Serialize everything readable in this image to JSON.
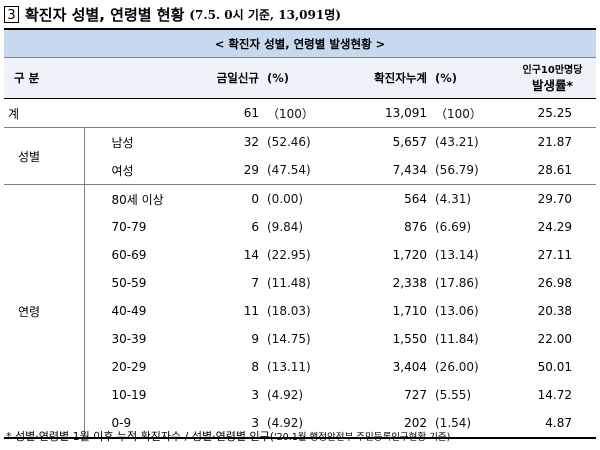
{
  "title": {
    "number": "3",
    "main": "확진자 성별, 연령별 현황",
    "sub": "(7.5. 0시 기준, 13,091명)"
  },
  "table": {
    "banner": "< 확진자 성별, 연령별 발생현황 >",
    "headers": {
      "category": "구 분",
      "new": "금일신규",
      "new_pct": "(%)",
      "cum": "확진자누계",
      "cum_pct": "(%)",
      "rate_top": "인구10만명당",
      "rate_bottom": "발생률*"
    },
    "total": {
      "label": "계",
      "new": "61",
      "new_pct": "（100）",
      "cum": "13,091",
      "cum_pct": "（100）",
      "rate": "25.25"
    },
    "sex": {
      "label": "성별",
      "rows": [
        {
          "label": "남성",
          "new": "32",
          "new_pct": "(52.46)",
          "cum": "5,657",
          "cum_pct": "(43.21)",
          "rate": "21.87"
        },
        {
          "label": "여성",
          "new": "29",
          "new_pct": "(47.54)",
          "cum": "7,434",
          "cum_pct": "(56.79)",
          "rate": "28.61"
        }
      ]
    },
    "age": {
      "label": "연령",
      "rows": [
        {
          "label": "80세 이상",
          "new": "0",
          "new_pct": "(0.00)",
          "cum": "564",
          "cum_pct": "(4.31)",
          "rate": "29.70"
        },
        {
          "label": "70-79",
          "new": "6",
          "new_pct": "(9.84)",
          "cum": "876",
          "cum_pct": "(6.69)",
          "rate": "24.29"
        },
        {
          "label": "60-69",
          "new": "14",
          "new_pct": "(22.95)",
          "cum": "1,720",
          "cum_pct": "(13.14)",
          "rate": "27.11"
        },
        {
          "label": "50-59",
          "new": "7",
          "new_pct": "(11.48)",
          "cum": "2,338",
          "cum_pct": "(17.86)",
          "rate": "26.98"
        },
        {
          "label": "40-49",
          "new": "11",
          "new_pct": "(18.03)",
          "cum": "1,710",
          "cum_pct": "(13.06)",
          "rate": "20.38"
        },
        {
          "label": "30-39",
          "new": "9",
          "new_pct": "(14.75)",
          "cum": "1,550",
          "cum_pct": "(11.84)",
          "rate": "22.00"
        },
        {
          "label": "20-29",
          "new": "8",
          "new_pct": "(13.11)",
          "cum": "3,404",
          "cum_pct": "(26.00)",
          "rate": "50.01"
        },
        {
          "label": "10-19",
          "new": "3",
          "new_pct": "(4.92)",
          "cum": "727",
          "cum_pct": "(5.55)",
          "rate": "14.72"
        },
        {
          "label": "0-9",
          "new": "3",
          "new_pct": "(4.92)",
          "cum": "202",
          "cum_pct": "(1.54)",
          "rate": "4.87"
        }
      ]
    }
  },
  "footnote": {
    "main": "* 성별·연령별 1월 이후 누적 확진자수 / 성별·연령별 인구(",
    "small": "'20.1월 행정안전부 주민등록인구현황 기준)"
  },
  "colors": {
    "banner_bg": "#c7d9ef",
    "header_bg": "#eef3f9"
  }
}
